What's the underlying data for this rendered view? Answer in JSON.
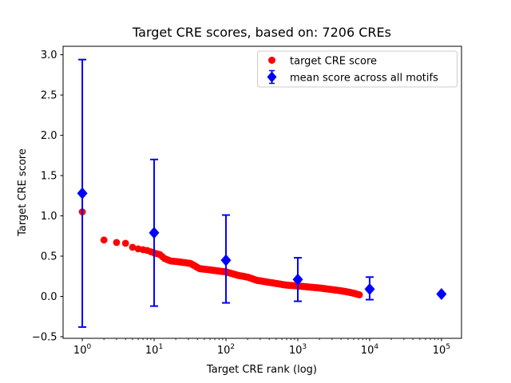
{
  "figure": {
    "title": "Target CRE scores, based on: 7206 CREs",
    "background": "#ffffff"
  },
  "axes": {
    "xlabel": "Target CRE rank (log)",
    "ylabel": "Target CRE score",
    "x_scale": "log",
    "xlim": [
      0.54,
      190000
    ],
    "ylim": [
      -0.52,
      3.105
    ],
    "grid": false,
    "spine_color": "#000000",
    "x_major_ticks": [
      {
        "value": 1,
        "base": "10",
        "exp": "0"
      },
      {
        "value": 10,
        "base": "10",
        "exp": "1"
      },
      {
        "value": 100,
        "base": "10",
        "exp": "2"
      },
      {
        "value": 1000,
        "base": "10",
        "exp": "3"
      },
      {
        "value": 10000,
        "base": "10",
        "exp": "4"
      },
      {
        "value": 100000,
        "base": "10",
        "exp": "5"
      }
    ],
    "y_ticks": [
      {
        "value": 3.0,
        "label": "3.0"
      },
      {
        "value": 2.5,
        "label": "2.5"
      },
      {
        "value": 2.0,
        "label": "2.0"
      },
      {
        "value": 1.5,
        "label": "1.5"
      },
      {
        "value": 1.0,
        "label": "1.0"
      },
      {
        "value": 0.5,
        "label": "0.5"
      },
      {
        "value": 0.0,
        "label": "0.0"
      },
      {
        "value": -0.5,
        "label": "−0.5"
      }
    ]
  },
  "legend": {
    "position": "upper right",
    "border_color": "#cccccc",
    "background": "#ffffff",
    "entries": [
      {
        "label": "target CRE score",
        "marker": "circle",
        "color": "#ff0000"
      },
      {
        "label": "mean score across all motifs",
        "marker": "diamond_errorbar",
        "color": "#0000ff"
      }
    ]
  },
  "chart_data": {
    "type": "scatter",
    "title": "Target CRE scores, based on: 7206 CREs",
    "xlabel": "Target CRE rank (log)",
    "ylabel": "Target CRE score",
    "x_scale": "log",
    "xlim": [
      0.54,
      190000
    ],
    "ylim": [
      -0.52,
      3.105
    ],
    "grid": false,
    "legend_position": "upper right",
    "series": [
      {
        "name": "target CRE score",
        "type": "scatter",
        "marker": "circle",
        "color": "#ff0000",
        "n_points": 7206,
        "note": "7206 ranked CRE scores forming a dense decreasing band; anchor points read from plot, interpolated log-linearly",
        "anchor_points": [
          [
            1,
            1.05
          ],
          [
            2,
            0.7
          ],
          [
            3,
            0.67
          ],
          [
            4,
            0.66
          ],
          [
            5,
            0.61
          ],
          [
            6,
            0.59
          ],
          [
            7,
            0.58
          ],
          [
            8,
            0.57
          ],
          [
            9,
            0.555
          ],
          [
            10,
            0.54
          ],
          [
            12,
            0.52
          ],
          [
            14,
            0.47
          ],
          [
            17,
            0.44
          ],
          [
            22,
            0.43
          ],
          [
            32,
            0.41
          ],
          [
            43,
            0.345
          ],
          [
            60,
            0.33
          ],
          [
            80,
            0.315
          ],
          [
            100,
            0.305
          ],
          [
            150,
            0.26
          ],
          [
            200,
            0.24
          ],
          [
            270,
            0.2
          ],
          [
            400,
            0.175
          ],
          [
            550,
            0.155
          ],
          [
            700,
            0.14
          ],
          [
            1000,
            0.13
          ],
          [
            1500,
            0.115
          ],
          [
            2000,
            0.105
          ],
          [
            3000,
            0.085
          ],
          [
            4000,
            0.07
          ],
          [
            5000,
            0.055
          ],
          [
            6000,
            0.04
          ],
          [
            7206,
            0.02
          ]
        ]
      },
      {
        "name": "mean score across all motifs",
        "type": "scatter_errorbar",
        "marker": "diamond",
        "color": "#0000ff",
        "points": [
          {
            "rank": 1,
            "mean": 1.28,
            "lo": -0.38,
            "hi": 2.94
          },
          {
            "rank": 10,
            "mean": 0.79,
            "lo": -0.12,
            "hi": 1.7
          },
          {
            "rank": 100,
            "mean": 0.45,
            "lo": -0.08,
            "hi": 1.01
          },
          {
            "rank": 1000,
            "mean": 0.21,
            "lo": -0.06,
            "hi": 0.48
          },
          {
            "rank": 10000,
            "mean": 0.09,
            "lo": -0.04,
            "hi": 0.24
          },
          {
            "rank": 100000,
            "mean": 0.03,
            "lo": 0.03,
            "hi": 0.03
          }
        ]
      }
    ]
  }
}
